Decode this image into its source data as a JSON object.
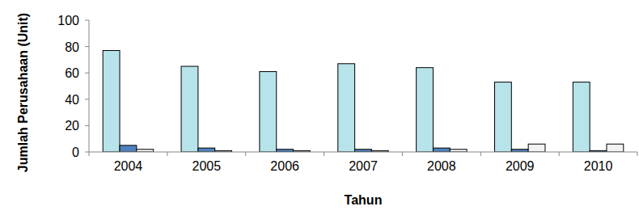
{
  "chart_data": {
    "type": "bar",
    "x_label": "Tahun",
    "y_label": "Jumlah Perusahaan (Unit)",
    "categories": [
      "2004",
      "2005",
      "2006",
      "2007",
      "2008",
      "2009",
      "2010"
    ],
    "series": [
      {
        "color": "#b7e3ea",
        "values": [
          77,
          65,
          61,
          67,
          64,
          53,
          53
        ]
      },
      {
        "color": "#4f81bd",
        "values": [
          5,
          3,
          2,
          2,
          3,
          2,
          1
        ]
      },
      {
        "color": "#f2f2f2",
        "values": [
          2,
          1,
          1,
          1,
          2,
          6,
          6
        ]
      }
    ],
    "ylim": [
      0,
      100
    ],
    "yticks": [
      0,
      20,
      40,
      60,
      80,
      100
    ],
    "grid": false
  }
}
